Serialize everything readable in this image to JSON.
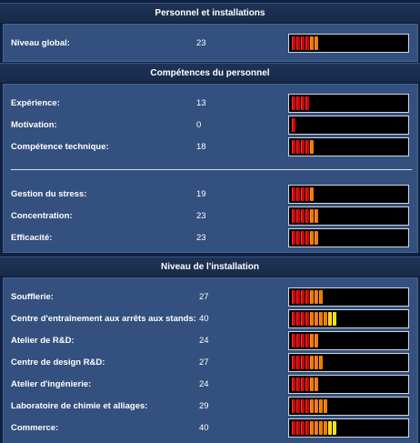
{
  "sections": [
    {
      "title": "Personnel et installations",
      "rows": [
        {
          "label": "Niveau global:",
          "value": "23",
          "level": 23
        }
      ]
    },
    {
      "title": "Compétences du personnel",
      "rows": [
        {
          "label": "Expérience:",
          "value": "13",
          "level": 13
        },
        {
          "label": "Motivation:",
          "value": "0",
          "level": 0
        },
        {
          "label": "Compétence technique:",
          "value": "18",
          "level": 18
        },
        {
          "label": "Gestion du stress:",
          "value": "19",
          "level": 19
        },
        {
          "label": "Concentration:",
          "value": "23",
          "level": 23
        },
        {
          "label": "Efficacité:",
          "value": "23",
          "level": 23
        }
      ]
    },
    {
      "title": "Niveau de l'installation",
      "rows": [
        {
          "label": "Soufflerie:",
          "value": "27",
          "level": 27
        },
        {
          "label": "Centre d'entraînement aux arrêts aux stands:",
          "value": "40",
          "level": 40
        },
        {
          "label": "Atelier de R&D:",
          "value": "24",
          "level": 24
        },
        {
          "label": "Centre de design R&D:",
          "value": "27",
          "level": 27
        },
        {
          "label": "Atelier d'ingénierie:",
          "value": "24",
          "level": 24
        },
        {
          "label": "Laboratoire de chimie et alliages:",
          "value": "29",
          "level": 29
        },
        {
          "label": "Commerce:",
          "value": "40",
          "level": 40
        }
      ]
    }
  ],
  "colors": {
    "bar_low": "#d40000",
    "bar_mid": "#f07800",
    "bar_high": "#ffe000"
  }
}
